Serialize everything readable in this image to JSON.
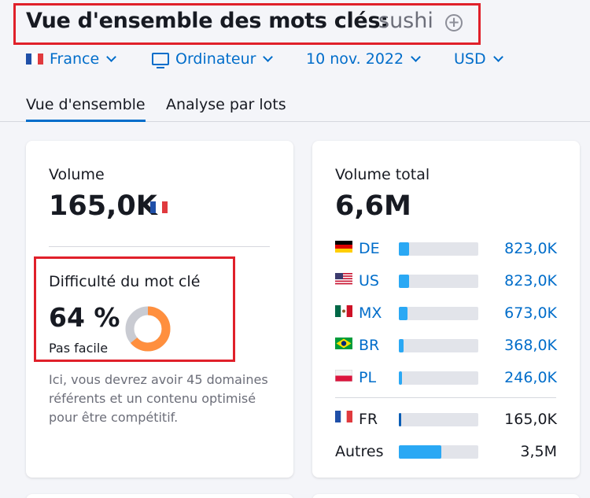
{
  "header": {
    "title": "Vue d'ensemble des mots clés:",
    "keyword": "sushi",
    "add_icon": "plus-circle-icon",
    "add_symbol": "+"
  },
  "filters": {
    "country": "France",
    "device": "Ordinateur",
    "date": "10 nov. 2022",
    "currency": "USD"
  },
  "tabs": [
    {
      "label": "Vue d'ensemble",
      "active": true
    },
    {
      "label": "Analyse par lots",
      "active": false
    }
  ],
  "volume_card": {
    "label": "Volume",
    "value": "165,0K",
    "difficulty_label": "Difficulté du mot clé",
    "difficulty_value": "64 %",
    "difficulty_percent": 64,
    "difficulty_text": "Pas facile",
    "description": "Ici, vous devrez avoir 45 domaines référents et un contenu optimisé pour être compétitif."
  },
  "total_card": {
    "label": "Volume total",
    "value": "6,6M",
    "countries": [
      {
        "code": "DE",
        "value": "823,0K",
        "fraction": 0.125,
        "flag": "de"
      },
      {
        "code": "US",
        "value": "823,0K",
        "fraction": 0.125,
        "flag": "us"
      },
      {
        "code": "MX",
        "value": "673,0K",
        "fraction": 0.105,
        "flag": "mx"
      },
      {
        "code": "BR",
        "value": "368,0K",
        "fraction": 0.06,
        "flag": "br"
      },
      {
        "code": "PL",
        "value": "246,0K",
        "fraction": 0.04,
        "flag": "pl"
      }
    ],
    "local": {
      "code": "FR",
      "value": "165,0K",
      "fraction": 0.03,
      "flag": "fr"
    },
    "others": {
      "label": "Autres",
      "value": "3,5M",
      "fraction": 0.53
    }
  },
  "colors": {
    "accent": "#006dca",
    "highlight_box": "#e0202a",
    "difficulty_orange": "#ff8f3e",
    "difficulty_track": "#c9cbd2",
    "bar": "#2aa8f4"
  }
}
